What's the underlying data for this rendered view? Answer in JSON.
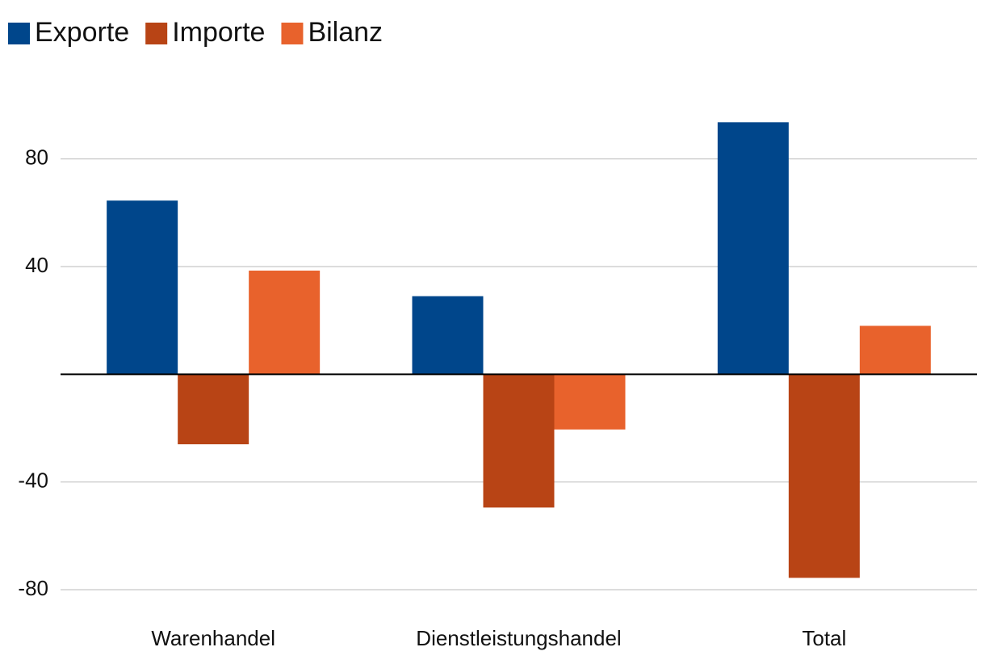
{
  "chart_data": {
    "type": "bar",
    "categories": [
      "Warenhandel",
      "Dienstleistungshandel",
      "Total"
    ],
    "series": [
      {
        "name": "Exporte",
        "color": "#00468b",
        "values": [
          64.5,
          29,
          93.6
        ]
      },
      {
        "name": "Importe",
        "color": "#b84415",
        "values": [
          -26,
          -49.5,
          -75.6
        ]
      },
      {
        "name": "Bilanz",
        "color": "#e8622c",
        "values": [
          38.5,
          -20.5,
          18
        ]
      }
    ],
    "ylim": [
      -80,
      100
    ],
    "yticks": [
      -80,
      -40,
      40,
      80
    ],
    "grid": true,
    "legend": "top-left"
  }
}
